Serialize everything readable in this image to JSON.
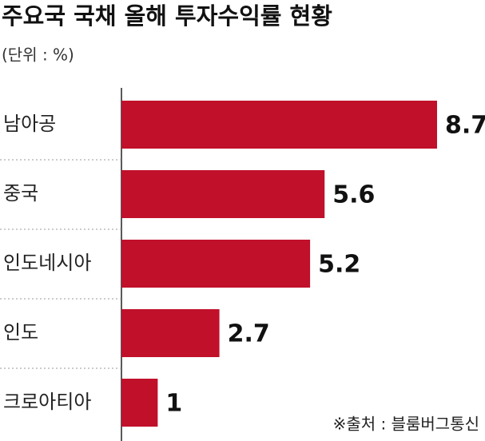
{
  "chart_data": {
    "type": "bar",
    "orientation": "horizontal",
    "title": "주요국 국채 올해 투자수익률 현황",
    "subtitle": "(단위 : %)",
    "source": "※출처 : 블룸버그통신",
    "categories": [
      "남아공",
      "중국",
      "인도네시아",
      "인도",
      "크로아티아"
    ],
    "values": [
      8.7,
      5.6,
      5.2,
      2.7,
      1
    ],
    "color": "#c0102a"
  }
}
